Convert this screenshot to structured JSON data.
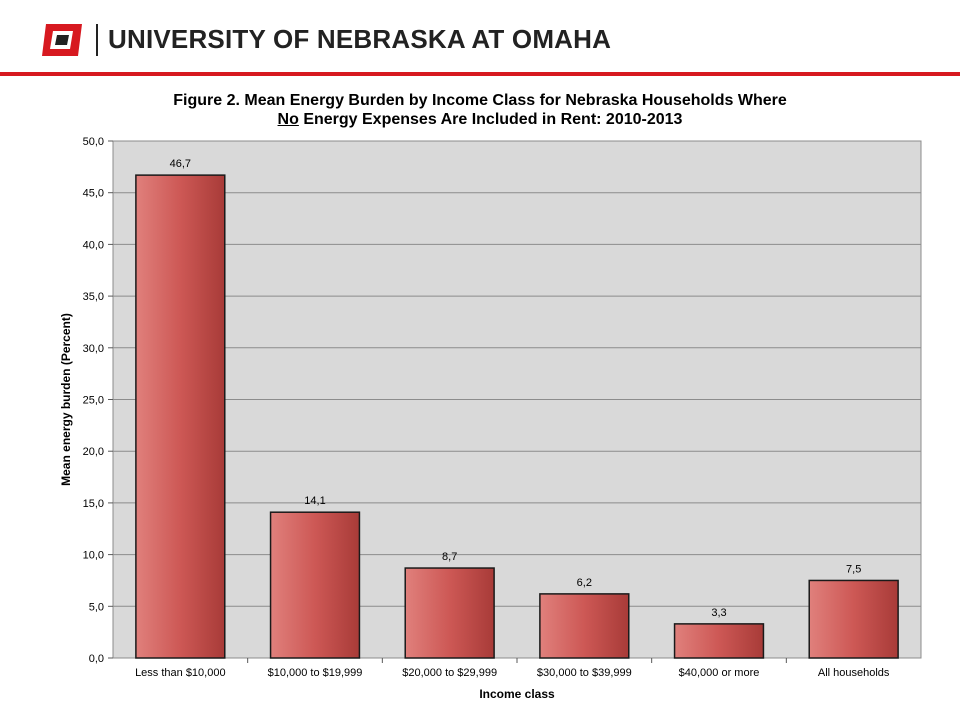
{
  "header": {
    "university": "UNIVERSITY OF NEBRASKA AT OMAHA",
    "accent_color": "#d71920",
    "logo_icon": "uno-o-logo-icon"
  },
  "figure": {
    "title_line1": "Figure 2. Mean Energy Burden by Income Class for Nebraska Households Where",
    "title_line2_underlined": "No",
    "title_line2_rest": " Energy Expenses Are Included in Rent: 2010-2013"
  },
  "chart_data": {
    "type": "bar",
    "categories": [
      "Less than $10,000",
      "$10,000 to $19,999",
      "$20,000 to $29,999",
      "$30,000 to $39,999",
      "$40,000 or more",
      "All households"
    ],
    "values": [
      46.7,
      14.1,
      8.7,
      6.2,
      3.3,
      7.5
    ],
    "value_labels": [
      "46,7",
      "14,1",
      "8,7",
      "6,2",
      "3,3",
      "7,5"
    ],
    "title": "Figure 2. Mean Energy Burden by Income Class for Nebraska Households Where No Energy Expenses Are Included in Rent: 2010-2013",
    "xlabel": "Income class",
    "ylabel": "Mean energy burden (Percent)",
    "ylim": [
      0,
      50
    ],
    "yticks": [
      "0,0",
      "5,0",
      "10,0",
      "15,0",
      "20,0",
      "25,0",
      "30,0",
      "35,0",
      "40,0",
      "45,0",
      "50,0"
    ],
    "grid": true,
    "legend": "none",
    "bar_color": "#cd5855",
    "plot_background": "#d9d9d9"
  }
}
